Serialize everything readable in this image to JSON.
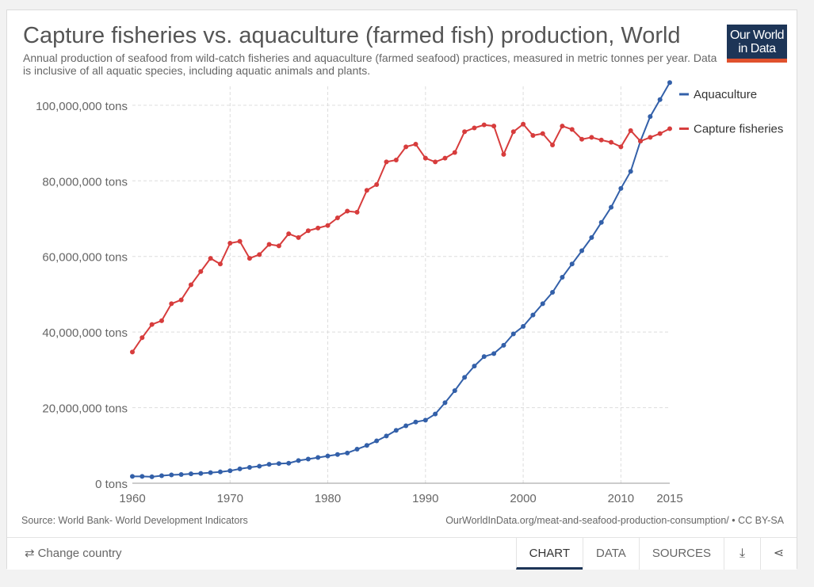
{
  "header": {
    "title": "Capture fisheries vs. aquaculture (farmed fish) production, World",
    "subtitle": "Annual production of seafood from wild-catch fisheries and aquaculture (farmed seafood) practices, measured in metric tonnes per year. Data is inclusive of all aquatic species, including aquatic animals and plants.",
    "logo_line1": "Our World",
    "logo_line2": "in Data"
  },
  "footer": {
    "source": "Source: World Bank- World Development Indicators",
    "url": "OurWorldInData.org/meat-and-seafood-production-consumption/ • CC BY-SA"
  },
  "controls": {
    "change_country": "Change country",
    "tabs": [
      "CHART",
      "DATA",
      "SOURCES"
    ],
    "active_tab": "CHART",
    "download_icon": "download-icon",
    "share_icon": "share-icon"
  },
  "chart_data": {
    "type": "line",
    "xlim": [
      1960,
      2015
    ],
    "ylim": [
      0,
      105000000
    ],
    "x_ticks": [
      1960,
      1970,
      1980,
      1990,
      2000,
      2010,
      2015
    ],
    "y_ticks": [
      0,
      20000000,
      40000000,
      60000000,
      80000000,
      100000000
    ],
    "y_tick_labels": [
      "0 tons",
      "20,000,000 tons",
      "40,000,000 tons",
      "60,000,000 tons",
      "80,000,000 tons",
      "100,000,000 tons"
    ],
    "grid": true,
    "legend_position": "right",
    "x": [
      1960,
      1961,
      1962,
      1963,
      1964,
      1965,
      1966,
      1967,
      1968,
      1969,
      1970,
      1971,
      1972,
      1973,
      1974,
      1975,
      1976,
      1977,
      1978,
      1979,
      1980,
      1981,
      1982,
      1983,
      1984,
      1985,
      1986,
      1987,
      1988,
      1989,
      1990,
      1991,
      1992,
      1993,
      1994,
      1995,
      1996,
      1997,
      1998,
      1999,
      2000,
      2001,
      2002,
      2003,
      2004,
      2005,
      2006,
      2007,
      2008,
      2009,
      2010,
      2011,
      2012,
      2013,
      2014,
      2015
    ],
    "series": [
      {
        "name": "Aquaculture",
        "color": "#3360a9",
        "values": [
          1800000,
          1800000,
          1700000,
          2000000,
          2200000,
          2300000,
          2500000,
          2600000,
          2800000,
          3000000,
          3300000,
          3800000,
          4200000,
          4500000,
          5000000,
          5200000,
          5300000,
          6000000,
          6400000,
          6800000,
          7200000,
          7600000,
          8000000,
          9000000,
          10000000,
          11200000,
          12500000,
          14000000,
          15200000,
          16200000,
          16700000,
          18300000,
          21300000,
          24500000,
          28000000,
          31000000,
          33500000,
          34300000,
          36500000,
          39500000,
          41500000,
          44500000,
          47500000,
          50500000,
          54500000,
          58000000,
          61500000,
          65000000,
          69000000,
          73000000,
          78000000,
          82500000,
          90500000,
          97000000,
          101500000,
          106000000
        ]
      },
      {
        "name": "Capture fisheries",
        "color": "#d73c3c",
        "values": [
          34700000,
          38500000,
          42000000,
          43000000,
          47500000,
          48500000,
          52500000,
          56000000,
          59500000,
          58000000,
          63500000,
          64000000,
          59500000,
          60500000,
          63200000,
          62800000,
          66000000,
          65000000,
          66800000,
          67500000,
          68200000,
          70200000,
          72000000,
          71700000,
          77500000,
          79000000,
          85000000,
          85500000,
          89000000,
          89700000,
          86000000,
          85000000,
          86000000,
          87500000,
          93000000,
          94000000,
          94800000,
          94500000,
          87000000,
          93000000,
          95000000,
          92000000,
          92500000,
          89500000,
          94500000,
          93600000,
          91000000,
          91500000,
          90800000,
          90200000,
          89000000,
          93300000,
          90500000,
          91500000,
          92500000,
          93800000
        ]
      }
    ]
  }
}
